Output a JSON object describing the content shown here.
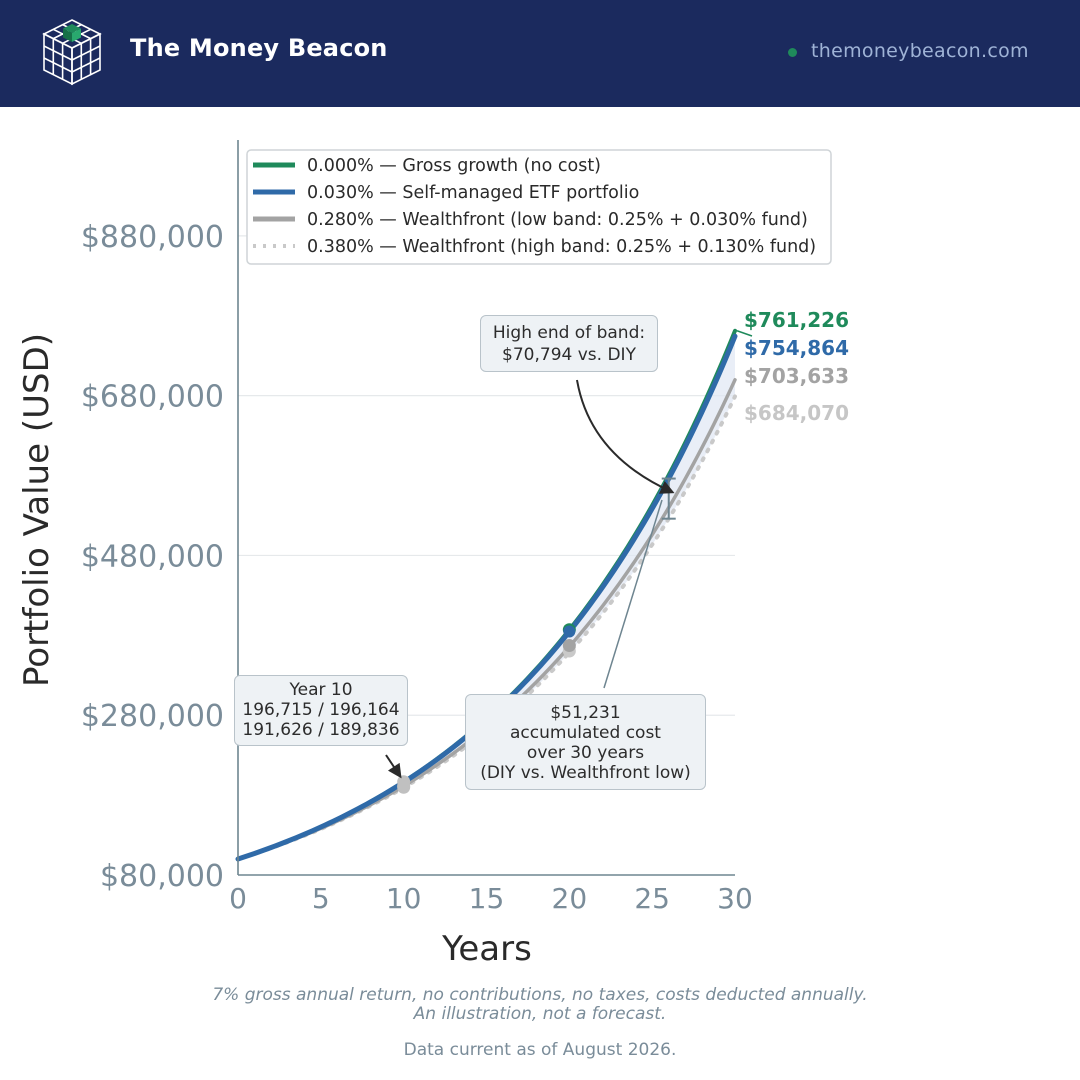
{
  "header": {
    "brand": "The Money Beacon",
    "site": "themoneybeacon.com"
  },
  "colors": {
    "header_bg": "#1b2a5e",
    "gross": "#1f8a5b",
    "diy": "#2f6aa8",
    "low": "#a3a3a3",
    "high": "#c9c9c9",
    "axis_text": "#7a8c99"
  },
  "chart_data": {
    "type": "line",
    "title": "",
    "xlabel": "Years",
    "ylabel": "Portfolio Value (USD)",
    "xlim": [
      0,
      30
    ],
    "ylim": [
      80000,
      1000000
    ],
    "x_ticks": [
      0,
      5,
      10,
      15,
      20,
      25,
      30
    ],
    "y_ticks": [
      80000,
      280000,
      480000,
      680000,
      880000
    ],
    "y_tick_labels": [
      "$80,000",
      "$280,000",
      "$480,000",
      "$680,000",
      "$880,000"
    ],
    "grid": "horizontal",
    "legend_position": "top-left",
    "initial_value": 100000,
    "gross_return": 0.07,
    "series": [
      {
        "name": "0.000% — Gross growth (no cost)",
        "fee": 0.0,
        "end_label": "$761,226",
        "end_value": 761226,
        "style": "solid",
        "color": "#1f8a5b"
      },
      {
        "name": "0.030% — Self-managed ETF portfolio",
        "fee": 0.0003,
        "end_label": "$754,864",
        "end_value": 754864,
        "style": "solid",
        "color": "#2f6aa8"
      },
      {
        "name": "0.280% — Wealthfront (low band: 0.25% + 0.030% fund)",
        "fee": 0.0028,
        "end_label": "$703,633",
        "end_value": 703633,
        "style": "solid",
        "color": "#a3a3a3"
      },
      {
        "name": "0.380% — Wealthfront (high band: 0.25% + 0.130% fund)",
        "fee": 0.0038,
        "end_label": "$684,070",
        "end_value": 684070,
        "style": "dotted",
        "color": "#c9c9c9"
      }
    ],
    "markers": [
      {
        "year": 10,
        "values": [
          196715,
          196164,
          191626,
          189836
        ]
      },
      {
        "year": 20,
        "values": [
          386968,
          384799,
          367207,
          360377
        ]
      }
    ],
    "annotations": {
      "year10": {
        "lines": [
          "Year 10",
          "196,715 / 196,164",
          "191,626 / 189,836"
        ]
      },
      "high_band": {
        "lines": [
          "High end of band:",
          "$70,794 vs. DIY"
        ],
        "year": 26
      },
      "accumulated": {
        "lines": [
          "$51,231",
          "accumulated cost",
          "over 30 years",
          "(DIY vs. Wealthfront low)"
        ]
      }
    }
  },
  "footer": {
    "note1": "7% gross annual return, no contributions, no taxes, costs deducted annually.",
    "note2": "An illustration, not a forecast.",
    "date": "Data current as of August 2026."
  }
}
